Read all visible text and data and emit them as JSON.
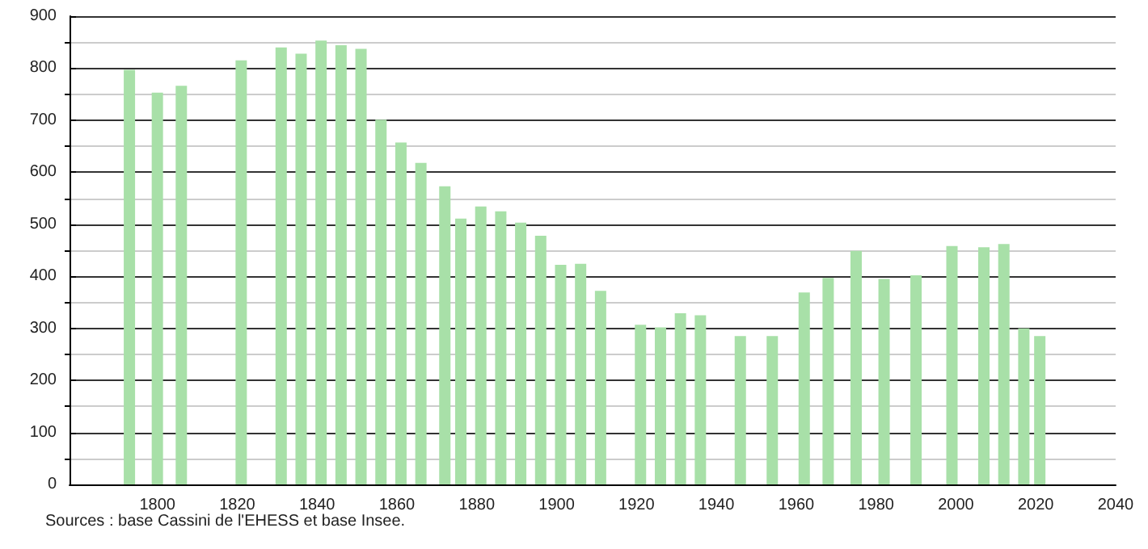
{
  "chart_data": {
    "type": "bar",
    "x": [
      1793,
      1800,
      1806,
      1821,
      1831,
      1836,
      1841,
      1846,
      1851,
      1856,
      1861,
      1866,
      1872,
      1876,
      1881,
      1886,
      1891,
      1896,
      1901,
      1906,
      1911,
      1921,
      1926,
      1931,
      1936,
      1946,
      1954,
      1962,
      1968,
      1975,
      1982,
      1990,
      1999,
      2007,
      2012,
      2017,
      2021
    ],
    "values": [
      797,
      753,
      766,
      815,
      840,
      828,
      853,
      844,
      837,
      701,
      657,
      618,
      573,
      511,
      534,
      525,
      503,
      478,
      422,
      424,
      372,
      307,
      302,
      329,
      325,
      285,
      285,
      369,
      397,
      449,
      395,
      402,
      458,
      456,
      462,
      300,
      285
    ],
    "color": "#a8e0a8",
    "xlim": [
      1778,
      2040
    ],
    "xticks": [
      1800,
      1820,
      1840,
      1860,
      1880,
      1900,
      1920,
      1940,
      1960,
      1980,
      2000,
      2020,
      2040
    ],
    "ylim": [
      0,
      900
    ],
    "yticks": [
      0,
      100,
      200,
      300,
      400,
      500,
      600,
      700,
      800,
      900
    ],
    "grid": "y",
    "annotations": [
      "Sources : base Cassini de l'EHESS et base Insee."
    ]
  }
}
